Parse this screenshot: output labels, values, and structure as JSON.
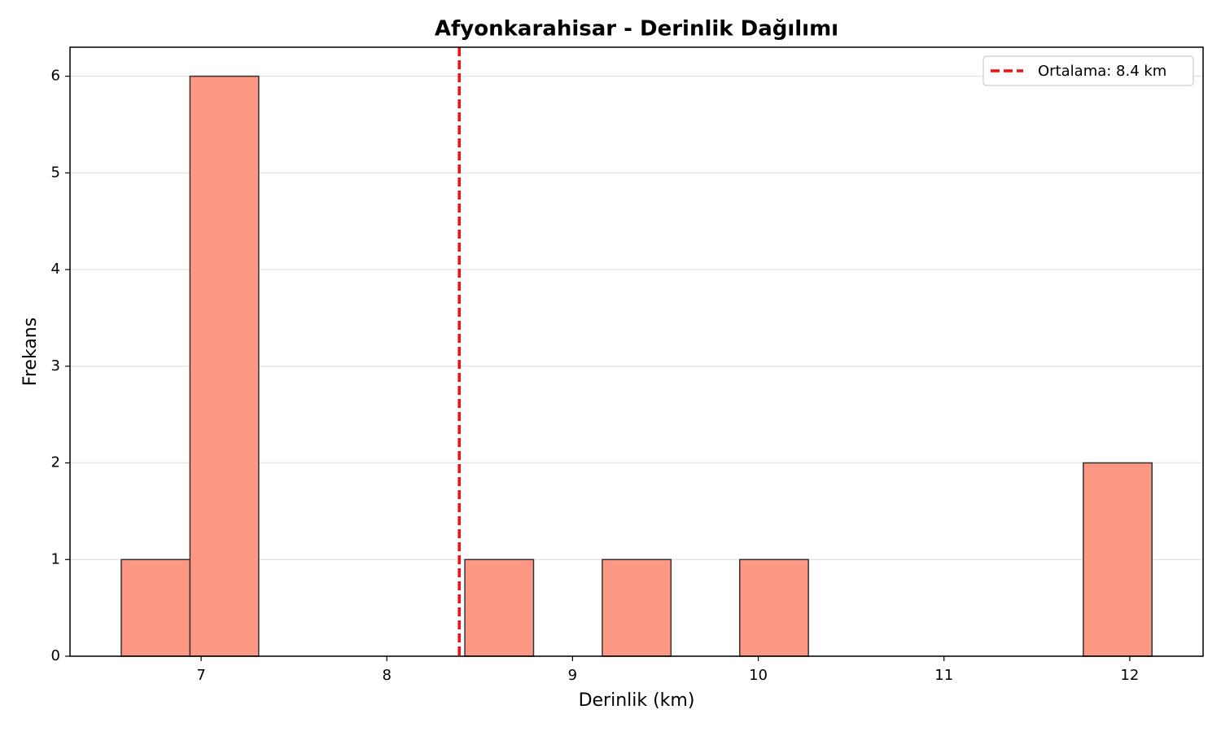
{
  "chart_data": {
    "type": "histogram",
    "title": "Afyonkarahisar - Derinlik Dağılımı",
    "x_label": "Derinlik (km)",
    "y_label": "Frekans",
    "bins": [
      6.57,
      6.94,
      7.31,
      7.68,
      8.05,
      8.42,
      8.79,
      9.16,
      9.53,
      9.9,
      10.27,
      10.64,
      11.01,
      11.38,
      11.75,
      12.12
    ],
    "values": [
      1,
      6,
      0,
      0,
      0,
      1,
      0,
      1,
      0,
      1,
      0,
      0,
      0,
      0,
      2
    ],
    "color": "#fc9884",
    "edge_color": "#333333",
    "xlim": [
      6.294,
      12.395
    ],
    "ylim": [
      0,
      6.3
    ],
    "xticks": [
      7,
      8,
      9,
      10,
      11,
      12
    ],
    "yticks": [
      0,
      1,
      2,
      3,
      4,
      5,
      6
    ],
    "grid": true,
    "reference_line": {
      "value": 8.39,
      "label": "Ortalama: 8.4 km",
      "color": "#ee1111"
    },
    "legend_position": "upper right"
  }
}
